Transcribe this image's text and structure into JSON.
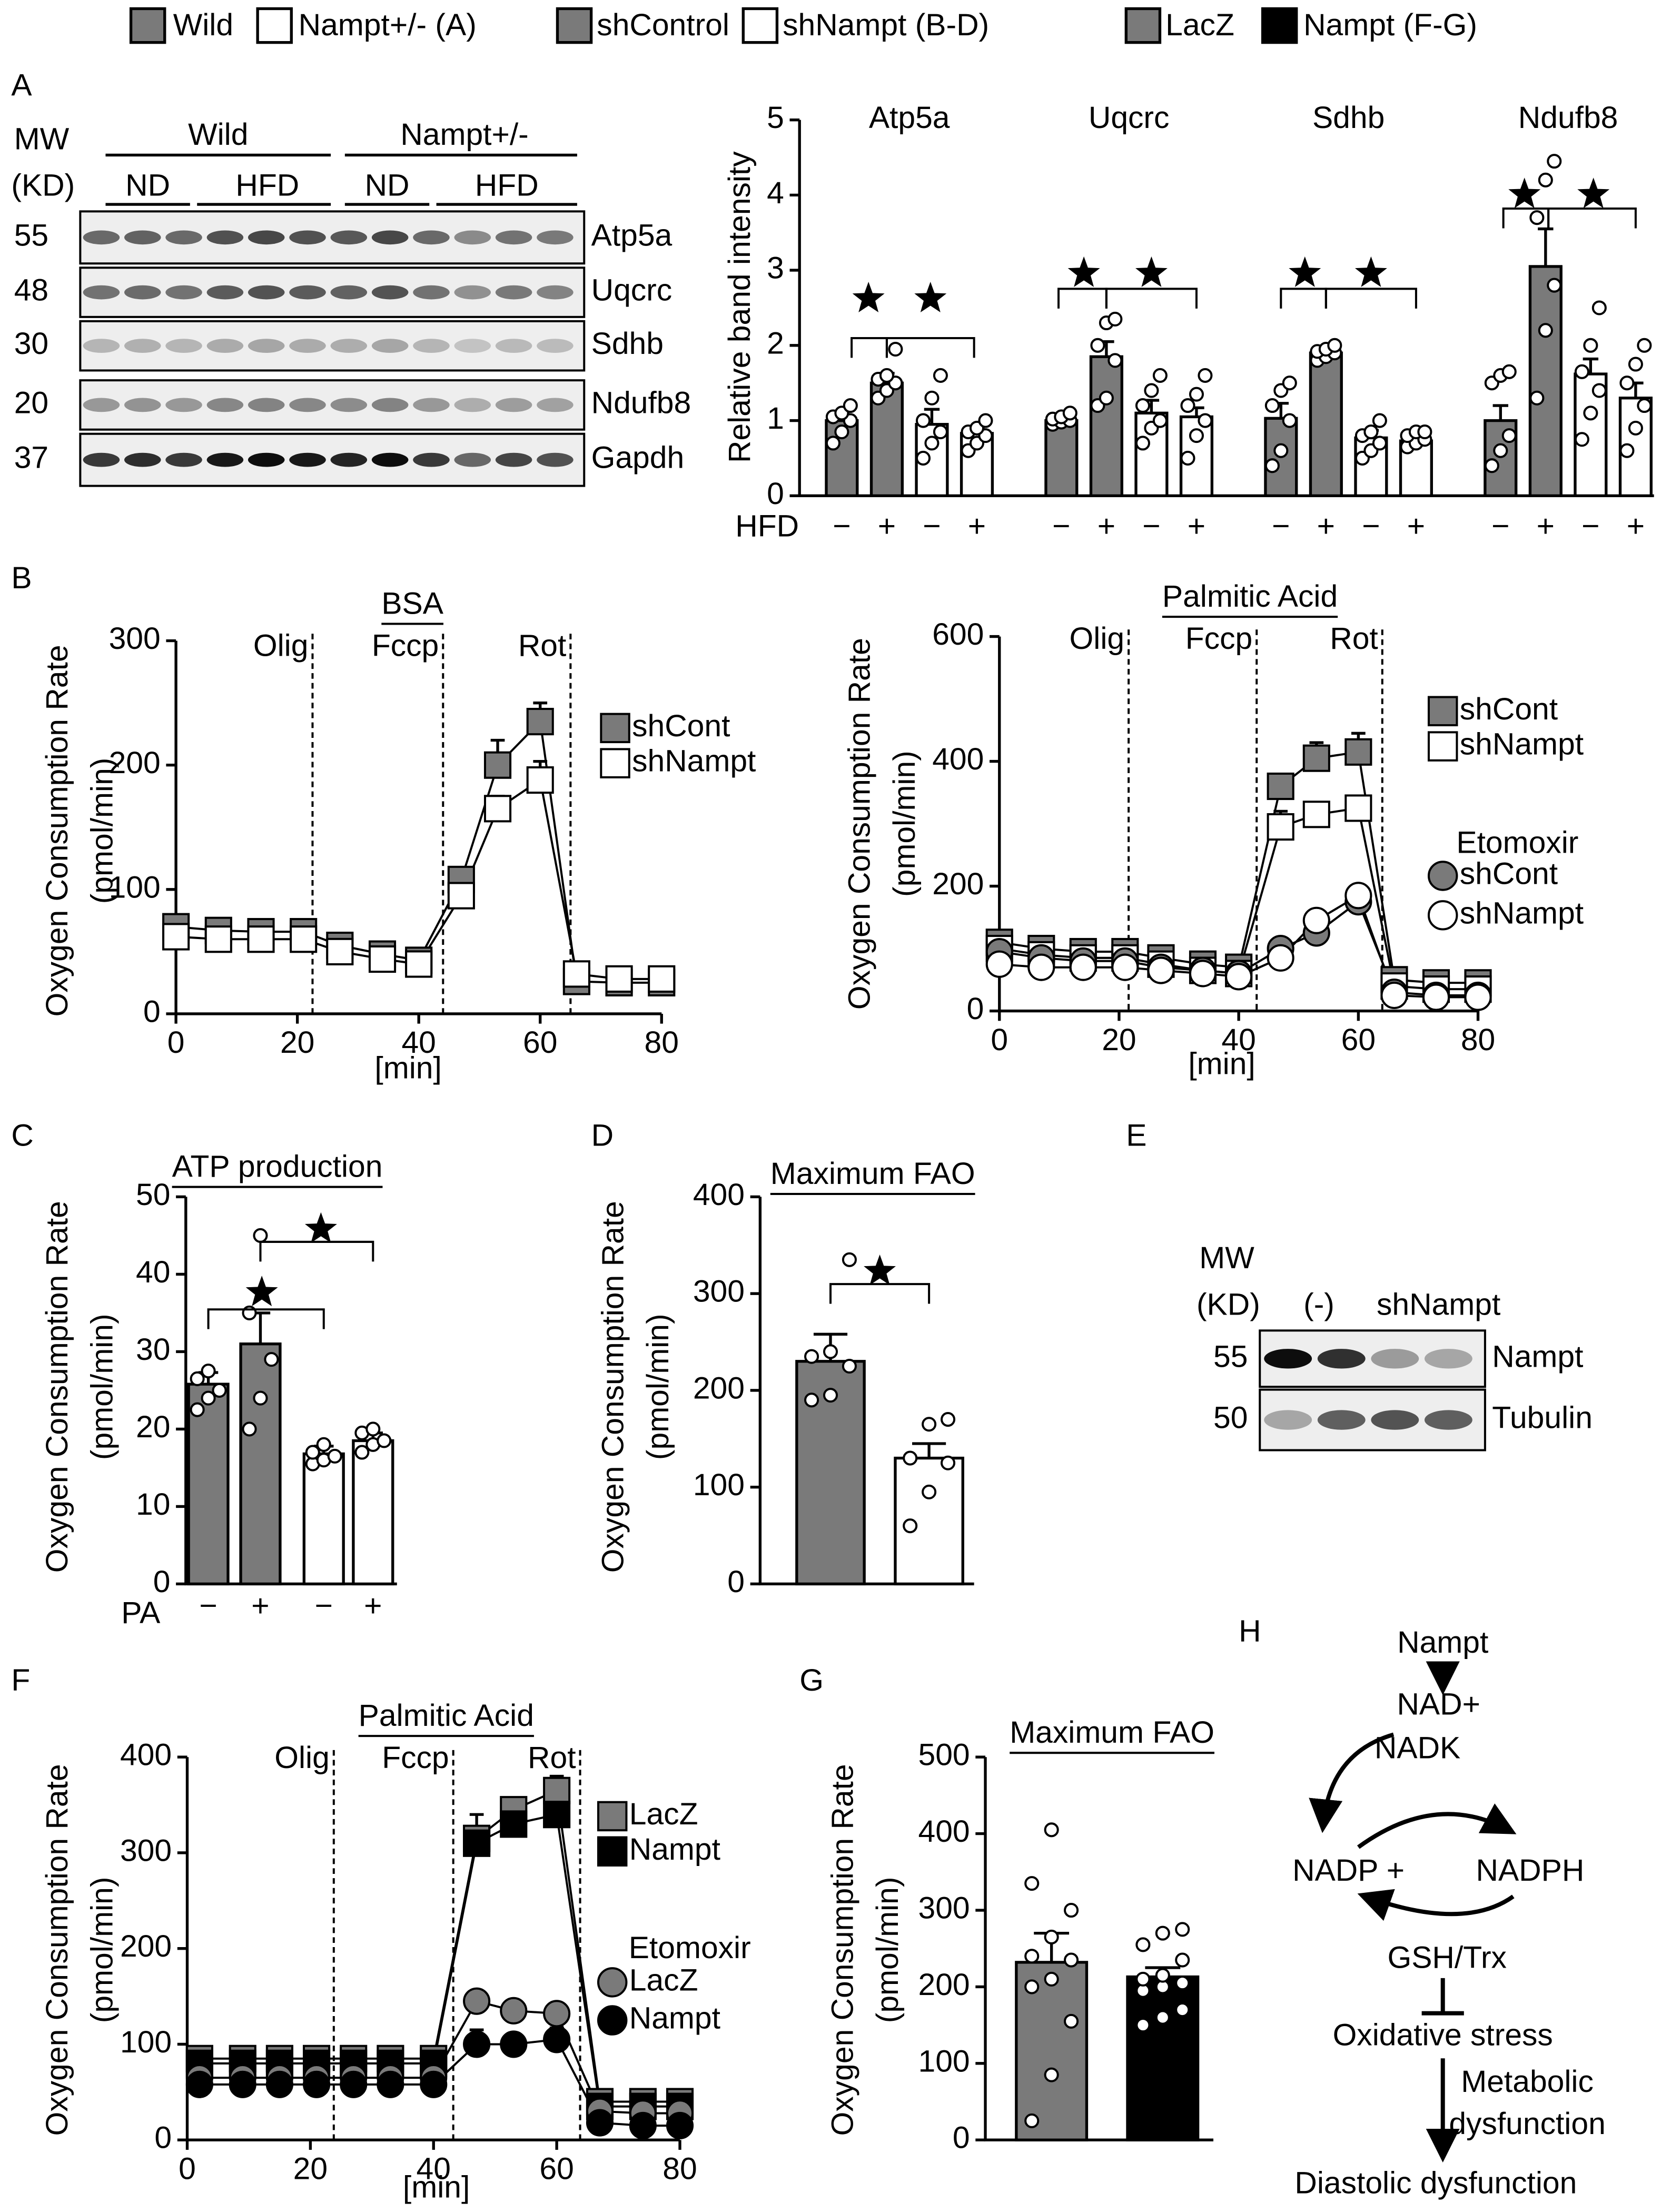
{
  "legend": [
    {
      "label": "Wild",
      "color": "#7a7a7a"
    },
    {
      "label": "Nampt+/- (A)",
      "color": "#ffffff"
    },
    {
      "label": "shControl",
      "color": "#7a7a7a"
    },
    {
      "label": "shNampt (B-D)",
      "color": "#ffffff"
    },
    {
      "label": "LacZ",
      "color": "#7a7a7a"
    },
    {
      "label": "Nampt (F-G)",
      "color": "#000000"
    }
  ],
  "panel_labels": [
    "A",
    "B",
    "C",
    "D",
    "E",
    "F",
    "G",
    "H"
  ],
  "blot_a": {
    "mw_header": "MW",
    "kd_header": "(KD)",
    "genotypes": [
      "Wild",
      "Nampt+/-"
    ],
    "diets": [
      "ND",
      "HFD",
      "ND",
      "HFD"
    ],
    "rows": [
      {
        "mw": 55,
        "protein": "Atp5a"
      },
      {
        "mw": 48,
        "protein": "Uqcrc"
      },
      {
        "mw": 30,
        "protein": "Sdhb"
      },
      {
        "mw": 20,
        "protein": "Ndufb8"
      },
      {
        "mw": 37,
        "protein": "Gapdh"
      }
    ]
  },
  "blot_e": {
    "mw_header": "MW",
    "kd_header": "(KD)",
    "lanes": [
      "(-)",
      "shNampt"
    ],
    "rows": [
      {
        "mw": 55,
        "protein": "Nampt"
      },
      {
        "mw": 50,
        "protein": "Tubulin"
      }
    ]
  },
  "diagram": {
    "nodes": [
      "Nampt",
      "NAD+",
      "NADK",
      "NADP +",
      "NADPH",
      "GSH/Trx",
      "Oxidative stress",
      "Metabolic",
      "dysfunction",
      "Diastolic dysfunction"
    ]
  },
  "chart_data": [
    {
      "type": "bar",
      "ylabel": [
        "Relative band intensity"
      ],
      "ylim": [
        0,
        5
      ],
      "yticks": [
        0,
        1,
        2,
        3,
        4,
        5
      ],
      "categories": [
        "Atp5a",
        "Uqcrc",
        "Sdhb",
        "Ndufb8"
      ],
      "x_label": "HFD",
      "bar_labels": [
        "−",
        "+",
        "−",
        "+"
      ],
      "series": [
        {
          "color": "#7a7a7a",
          "values": [
            1.0,
            1.0,
            1.03,
            1.0
          ],
          "errors": [
            0.1,
            0.05,
            0.2,
            0.2
          ],
          "points": [
            [
              0.7,
              0.85,
              1.0,
              1.05,
              1.1,
              1.2
            ],
            [
              0.95,
              0.98,
              1.0,
              1.02,
              1.05,
              1.1
            ],
            [
              0.4,
              0.6,
              1.0,
              1.2,
              1.4,
              1.5
            ],
            [
              0.4,
              0.6,
              0.8,
              1.5,
              1.6,
              1.65
            ]
          ]
        },
        {
          "color": "#7a7a7a",
          "values": [
            1.5,
            1.85,
            1.9,
            3.05
          ],
          "errors": [
            0.13,
            0.2,
            0.06,
            0.5
          ],
          "points": [
            [
              1.3,
              1.4,
              1.5,
              1.55,
              1.6,
              1.95
            ],
            [
              1.2,
              1.3,
              1.8,
              2.0,
              2.3,
              2.35
            ],
            [
              1.8,
              1.85,
              1.9,
              1.92,
              1.95,
              2.0
            ],
            [
              1.3,
              2.2,
              2.8,
              3.7,
              4.2,
              4.45
            ]
          ]
        },
        {
          "color": "#ffffff",
          "values": [
            0.95,
            1.1,
            0.77,
            1.62
          ],
          "errors": [
            0.2,
            0.17,
            0.1,
            0.2
          ],
          "points": [
            [
              0.5,
              0.7,
              0.85,
              1.0,
              1.3,
              1.6
            ],
            [
              0.7,
              0.9,
              1.0,
              1.2,
              1.4,
              1.6
            ],
            [
              0.5,
              0.6,
              0.7,
              0.8,
              0.85,
              1.0
            ],
            [
              0.75,
              1.1,
              1.4,
              1.65,
              2.0,
              2.5
            ]
          ]
        },
        {
          "color": "#ffffff",
          "values": [
            0.83,
            1.05,
            0.73,
            1.3
          ],
          "errors": [
            0.08,
            0.12,
            0.05,
            0.2
          ],
          "points": [
            [
              0.6,
              0.7,
              0.8,
              0.85,
              0.9,
              1.0
            ],
            [
              0.5,
              0.8,
              1.0,
              1.2,
              1.35,
              1.6
            ],
            [
              0.65,
              0.7,
              0.75,
              0.8,
              0.85,
              0.85
            ],
            [
              0.6,
              0.9,
              1.2,
              1.5,
              1.75,
              2.0
            ]
          ]
        }
      ]
    },
    {
      "type": "line",
      "title": "BSA",
      "ylabel": [
        "Oxygen Consumption Rate",
        "(pmol/min)"
      ],
      "xlabel": "[min]",
      "xlim": [
        0,
        80
      ],
      "xticks": [
        0,
        20,
        40,
        60,
        80
      ],
      "ylim": [
        0,
        300
      ],
      "yticks": [
        0,
        100,
        200,
        300
      ],
      "vlines": [
        {
          "x": 22.5,
          "label": "Olig"
        },
        {
          "x": 44,
          "label": "Fccp"
        },
        {
          "x": 65,
          "label": "Rot"
        }
      ],
      "x": [
        0,
        7,
        14,
        21,
        27,
        34,
        40,
        47,
        53,
        60,
        66,
        73,
        80
      ],
      "series": [
        {
          "name": "shCont",
          "color": "#7a7a7a",
          "marker": "square",
          "values": [
            70,
            67,
            66,
            66,
            55,
            48,
            43,
            108,
            200,
            235,
            26,
            25,
            25
          ],
          "errors": [
            null,
            null,
            null,
            null,
            null,
            null,
            null,
            8,
            20,
            15,
            null,
            null,
            null
          ]
        },
        {
          "name": "shNampt",
          "color": "#ffffff",
          "marker": "square",
          "values": [
            62,
            60,
            60,
            60,
            50,
            44,
            40,
            95,
            165,
            188,
            32,
            28,
            28
          ],
          "errors": [
            null,
            null,
            null,
            null,
            null,
            null,
            null,
            null,
            10,
            15,
            null,
            null,
            null
          ]
        }
      ]
    },
    {
      "type": "line",
      "title": "Palmitic Acid",
      "ylabel": [
        "Oxygen Consumption Rate",
        "(pmol/min)"
      ],
      "xlabel": "[min]",
      "xlim": [
        0,
        80
      ],
      "xticks": [
        0,
        20,
        40,
        60,
        80
      ],
      "ylim": [
        0,
        600
      ],
      "yticks": [
        0,
        200,
        400,
        600
      ],
      "vlines": [
        {
          "x": 21.6,
          "label": "Olig"
        },
        {
          "x": 43,
          "label": "Fccp"
        },
        {
          "x": 64,
          "label": "Rot"
        }
      ],
      "legend_subtitle": "Etomoxir",
      "x": [
        0,
        7,
        14,
        21,
        27,
        34,
        40,
        47,
        53,
        60,
        66,
        73,
        80
      ],
      "series": [
        {
          "name": "shCont",
          "color": "#7a7a7a",
          "marker": "square",
          "values": [
            110,
            100,
            95,
            95,
            85,
            75,
            70,
            360,
            405,
            415,
            50,
            45,
            45
          ],
          "errors": [
            null,
            null,
            null,
            null,
            null,
            null,
            null,
            15,
            25,
            30,
            null,
            null,
            null
          ]
        },
        {
          "name": "shNampt",
          "color": "#ffffff",
          "marker": "square",
          "values": [
            100,
            90,
            85,
            85,
            75,
            65,
            60,
            295,
            315,
            325,
            40,
            35,
            35
          ],
          "errors": [
            null,
            null,
            null,
            null,
            null,
            null,
            null,
            25,
            15,
            12,
            null,
            null,
            null
          ]
        },
        {
          "name": "shCont",
          "color": "#7a7a7a",
          "marker": "circle",
          "values": [
            95,
            85,
            80,
            80,
            70,
            65,
            60,
            100,
            125,
            175,
            30,
            25,
            25
          ],
          "errors": [
            null,
            null,
            null,
            null,
            null,
            null,
            null,
            null,
            null,
            null,
            null,
            null,
            null
          ]
        },
        {
          "name": "shNampt",
          "color": "#ffffff",
          "marker": "circle",
          "values": [
            75,
            70,
            70,
            70,
            65,
            60,
            55,
            85,
            145,
            185,
            25,
            22,
            22
          ],
          "errors": [
            null,
            null,
            null,
            null,
            null,
            null,
            null,
            null,
            null,
            null,
            null,
            null,
            null
          ]
        }
      ]
    },
    {
      "type": "bar",
      "title": "ATP production",
      "ylabel": [
        "Oxygen Consumption Rate",
        "(pmol/min)"
      ],
      "ylim": [
        0,
        50
      ],
      "yticks": [
        0,
        10,
        20,
        30,
        40,
        50
      ],
      "x_label": "PA",
      "bar_labels": [
        "−",
        "+",
        "−",
        "+"
      ],
      "values": [
        25.8,
        31,
        16.8,
        18.5
      ],
      "errors": [
        1.5,
        4,
        1,
        1
      ],
      "colors": [
        "#7a7a7a",
        "#7a7a7a",
        "#ffffff",
        "#ffffff"
      ],
      "points": [
        [
          22.5,
          24,
          25,
          26.5,
          27.5
        ],
        [
          20,
          24,
          29,
          35,
          45
        ],
        [
          15.5,
          16,
          16.5,
          17,
          18
        ],
        [
          17,
          18,
          18.5,
          19.5,
          20
        ]
      ]
    },
    {
      "type": "bar",
      "title": "Maximum FAO",
      "ylabel": [
        "Oxygen Consumption Rate",
        "(pmol/min)"
      ],
      "ylim": [
        0,
        400
      ],
      "yticks": [
        0,
        100,
        200,
        300,
        400
      ],
      "values": [
        230,
        130
      ],
      "errors": [
        28,
        15
      ],
      "colors": [
        "#7a7a7a",
        "#ffffff"
      ],
      "points": [
        [
          190,
          195,
          225,
          235,
          240,
          335
        ],
        [
          60,
          95,
          125,
          130,
          165,
          170
        ]
      ]
    },
    {
      "type": "line",
      "title": "Palmitic Acid",
      "ylabel": [
        "Oxygen Consumption Rate",
        "(pmol/min)"
      ],
      "xlabel": "[min]",
      "xlim": [
        0,
        80
      ],
      "xticks": [
        0,
        20,
        40,
        60,
        80
      ],
      "ylim": [
        0,
        400
      ],
      "yticks": [
        0,
        100,
        200,
        300,
        400
      ],
      "vlines": [
        {
          "x": 23.8,
          "label": "Olig"
        },
        {
          "x": 43.2,
          "label": "Fccp"
        },
        {
          "x": 63.8,
          "label": "Rot"
        }
      ],
      "legend_subtitle": "Etomoxir",
      "x": [
        2,
        9,
        15,
        21,
        27,
        33,
        40,
        47,
        53,
        60,
        67,
        74,
        80
      ],
      "series": [
        {
          "name": "LacZ",
          "color": "#7a7a7a",
          "marker": "square",
          "values": [
            85,
            85,
            85,
            85,
            85,
            85,
            85,
            315,
            345,
            365,
            40,
            40,
            40
          ],
          "errors": [
            null,
            null,
            null,
            null,
            null,
            null,
            null,
            25,
            10,
            15,
            null,
            null,
            null
          ]
        },
        {
          "name": "Nampt",
          "color": "#000000",
          "marker": "square",
          "values": [
            80,
            80,
            80,
            80,
            80,
            80,
            80,
            310,
            330,
            340,
            35,
            35,
            35
          ],
          "errors": [
            null,
            null,
            null,
            null,
            null,
            null,
            null,
            null,
            null,
            null,
            null,
            null,
            null
          ]
        },
        {
          "name": "LacZ",
          "color": "#7a7a7a",
          "marker": "circle",
          "values": [
            65,
            65,
            65,
            65,
            65,
            65,
            65,
            145,
            135,
            132,
            30,
            28,
            28
          ],
          "errors": [
            null,
            null,
            null,
            null,
            null,
            null,
            null,
            10,
            null,
            null,
            null,
            null,
            null
          ]
        },
        {
          "name": "Nampt",
          "color": "#000000",
          "marker": "circle",
          "values": [
            58,
            58,
            58,
            58,
            58,
            58,
            58,
            100,
            100,
            105,
            18,
            15,
            15
          ],
          "errors": [
            null,
            null,
            null,
            null,
            null,
            null,
            null,
            15,
            10,
            12,
            null,
            null,
            null
          ]
        }
      ]
    },
    {
      "type": "bar",
      "title": "Maximum FAO",
      "ylabel": [
        "Oxygen Consumption Rate",
        "(pmol/min)"
      ],
      "ylim": [
        0,
        500
      ],
      "yticks": [
        0,
        100,
        200,
        300,
        400,
        500
      ],
      "values": [
        232,
        213
      ],
      "errors": [
        38,
        12
      ],
      "colors": [
        "#7a7a7a",
        "#000000"
      ],
      "points": [
        [
          25,
          85,
          155,
          200,
          210,
          235,
          240,
          265,
          300,
          335,
          405
        ],
        [
          150,
          160,
          170,
          195,
          200,
          205,
          210,
          215,
          235,
          255,
          270,
          275
        ]
      ]
    }
  ]
}
